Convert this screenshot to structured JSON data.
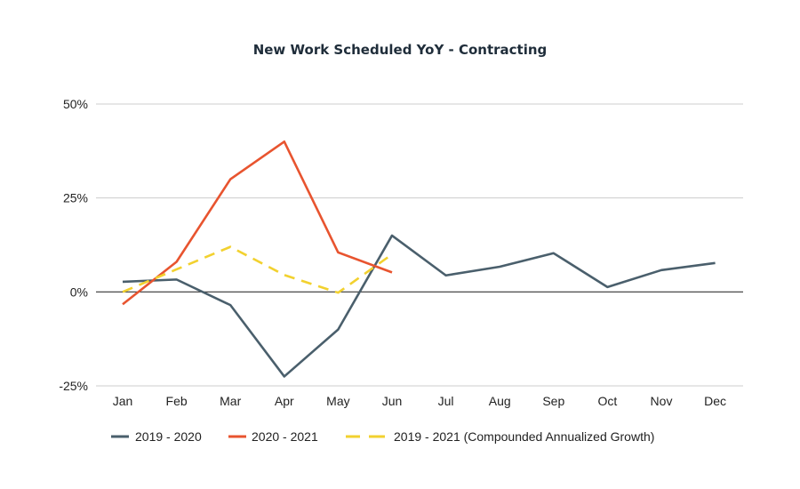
{
  "chart_data": {
    "type": "line",
    "title": "New Work Scheduled YoY - Contracting",
    "xlabel": "",
    "ylabel": "",
    "categories": [
      "Jan",
      "Feb",
      "Mar",
      "Apr",
      "May",
      "Jun",
      "Jul",
      "Aug",
      "Sep",
      "Oct",
      "Nov",
      "Dec"
    ],
    "ylim": [
      -25,
      50
    ],
    "yticks": [
      50,
      25,
      0,
      -25
    ],
    "ytick_labels": [
      "50%",
      "25%",
      "0%",
      "-25%"
    ],
    "grid": true,
    "legend_position": "bottom",
    "series": [
      {
        "name": "2019 - 2020",
        "color": "#4a5f6c",
        "style": "solid",
        "values": [
          2.7,
          3.3,
          -3.5,
          -22.5,
          -10,
          15,
          4.4,
          6.7,
          10.3,
          1.3,
          5.8,
          7.7
        ]
      },
      {
        "name": "2020 - 2021",
        "color": "#e8542f",
        "style": "solid",
        "values": [
          -3.3,
          8,
          30,
          40,
          10.5,
          5.2,
          null,
          null,
          null,
          null,
          null,
          null
        ]
      },
      {
        "name": "2019 - 2021 (Compounded Annualized Growth)",
        "color": "#f2d12f",
        "style": "dashed",
        "values": [
          0,
          6,
          12,
          4.5,
          -0.2,
          10,
          null,
          null,
          null,
          null,
          null,
          null
        ]
      }
    ]
  }
}
